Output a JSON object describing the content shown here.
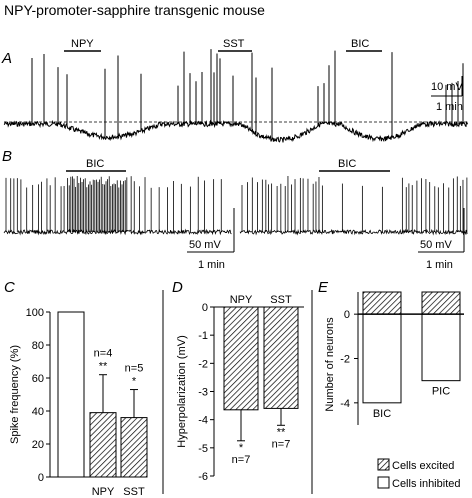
{
  "figure": {
    "title": "NPY-promoter-sapphire transgenic mouse",
    "panel_a": {
      "label": "A",
      "drug_labels": [
        "NPY",
        "SST",
        "BIC"
      ],
      "scale_voltage": "10 mV",
      "scale_time": "1 min"
    },
    "panel_b": {
      "label": "B",
      "left_drug": "BIC",
      "right_drug": "BIC",
      "left_scale_voltage": "50 mV",
      "left_scale_time": "1 min",
      "right_scale_voltage": "50 mV",
      "right_scale_time": "1 min"
    }
  },
  "chart_data": [
    {
      "panel": "C",
      "type": "bar",
      "categories": [
        "",
        "NPY",
        "SST"
      ],
      "values": [
        100,
        39,
        36
      ],
      "errors": [
        0,
        23,
        17
      ],
      "annotations": [
        "",
        "n=4\n**",
        "n=5\n*"
      ],
      "fills": [
        "white",
        "hatched",
        "hatched"
      ],
      "ylabel": "Spike frequency (%)",
      "ylim": [
        0,
        100
      ],
      "yticks": [
        "0",
        "20",
        "40",
        "60",
        "80",
        "100"
      ]
    },
    {
      "panel": "D",
      "type": "bar",
      "categories": [
        "NPY",
        "SST"
      ],
      "values": [
        -3.65,
        -3.6
      ],
      "errors": [
        1.1,
        0.6
      ],
      "annotations": [
        "*\nn=7",
        "**\nn=7"
      ],
      "ylabel": "Hyperpolarization (mV)",
      "ylim": [
        -6,
        0
      ],
      "yticks": [
        "0",
        "-1",
        "-2",
        "-3",
        "-4",
        "-5",
        "-6"
      ]
    },
    {
      "panel": "E",
      "type": "bar",
      "categories": [
        "BIC",
        "PIC"
      ],
      "series": [
        {
          "name": "Cells excited",
          "values": [
            1,
            1
          ]
        },
        {
          "name": "Cells inhibited",
          "values": [
            -4,
            -3
          ]
        }
      ],
      "ylabel": "Number of neurons",
      "ylim": [
        -5,
        1
      ],
      "yticks": [
        "0",
        "-2",
        "-4"
      ],
      "legend": [
        "Cells excited",
        "Cells inhibited"
      ]
    }
  ]
}
